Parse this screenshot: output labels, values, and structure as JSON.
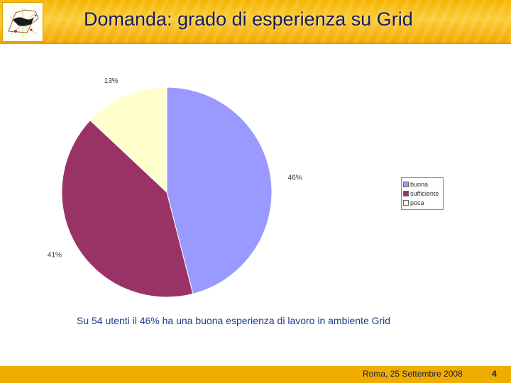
{
  "slide": {
    "title": "Domanda:  grado di esperienza su Grid",
    "caption": "Su 54 utenti il 46% ha una buona esperienza di lavoro in ambiente Grid",
    "footer_date": "Roma, 25 Settembre 2008",
    "page_number": "4",
    "logo_icon": "sicily-grid-logo-icon"
  },
  "chart_data": {
    "type": "pie",
    "categories": [
      "buona",
      "sufficiente",
      "poca"
    ],
    "values": [
      46,
      41,
      13
    ],
    "value_labels": [
      "46%",
      "41%",
      "13%"
    ],
    "colors": [
      "#9999ff",
      "#993366",
      "#ffffcc"
    ],
    "legend_position": "right"
  }
}
